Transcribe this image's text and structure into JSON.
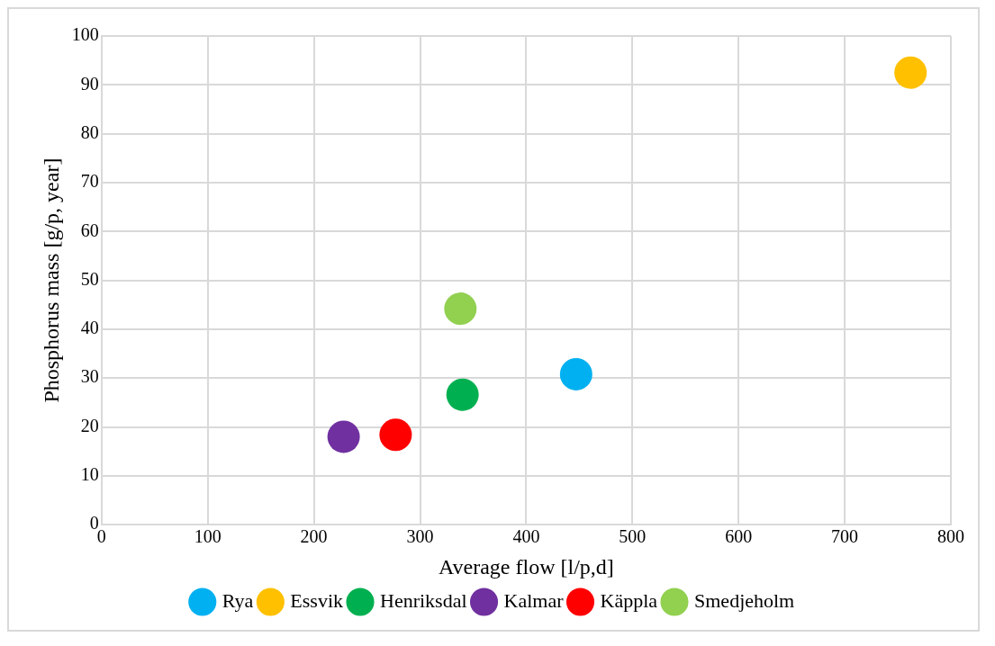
{
  "chart_data": {
    "type": "scatter",
    "xlabel": "Average flow [l/p,d]",
    "ylabel": "Phosphorus mass [g/p, year]",
    "xlim": [
      0,
      800
    ],
    "xticks": [
      0,
      100,
      200,
      300,
      400,
      500,
      600,
      700,
      800
    ],
    "ylim": [
      0,
      100
    ],
    "yticks": [
      0,
      10,
      20,
      30,
      40,
      50,
      60,
      70,
      80,
      90,
      100
    ],
    "grid": true,
    "legend": "bottom",
    "marker": "circle",
    "series": [
      {
        "name": "Rya",
        "color": "#00b0f0",
        "x": [
          447
        ],
        "values": [
          30.8
        ]
      },
      {
        "name": "Essvik",
        "color": "#ffc000",
        "x": [
          762
        ],
        "values": [
          92.5
        ]
      },
      {
        "name": "Henriksdal",
        "color": "#00b050",
        "x": [
          340
        ],
        "values": [
          26.6
        ]
      },
      {
        "name": "Kalmar",
        "color": "#7030a0",
        "x": [
          228
        ],
        "values": [
          18.0
        ]
      },
      {
        "name": "Käppla",
        "color": "#ff0000",
        "x": [
          277
        ],
        "values": [
          18.4
        ]
      },
      {
        "name": "Smedjeholm",
        "color": "#92d050",
        "x": [
          338
        ],
        "values": [
          44.2
        ]
      }
    ]
  }
}
